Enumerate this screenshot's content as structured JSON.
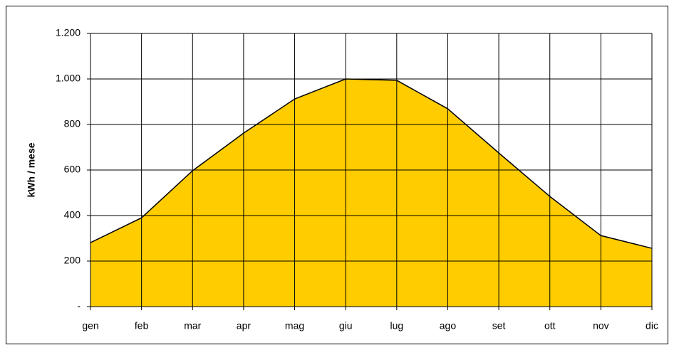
{
  "chart_data": {
    "type": "area",
    "y_label": "kWh / mese",
    "categories": [
      "gen",
      "feb",
      "mar",
      "apr",
      "mag",
      "giu",
      "lug",
      "ago",
      "set",
      "ott",
      "nov",
      "dic"
    ],
    "values": [
      281,
      390,
      597,
      762,
      912,
      1000,
      994,
      869,
      675,
      484,
      312,
      256
    ],
    "color": "#ffcc00",
    "ylim": [
      0,
      1200
    ],
    "yticks": [
      {
        "value": 0,
        "label": "-"
      },
      200,
      400,
      600,
      800,
      {
        "value": 1000,
        "label": "1.000"
      },
      {
        "value": 1200,
        "label": "1.200"
      }
    ],
    "grid": true
  }
}
